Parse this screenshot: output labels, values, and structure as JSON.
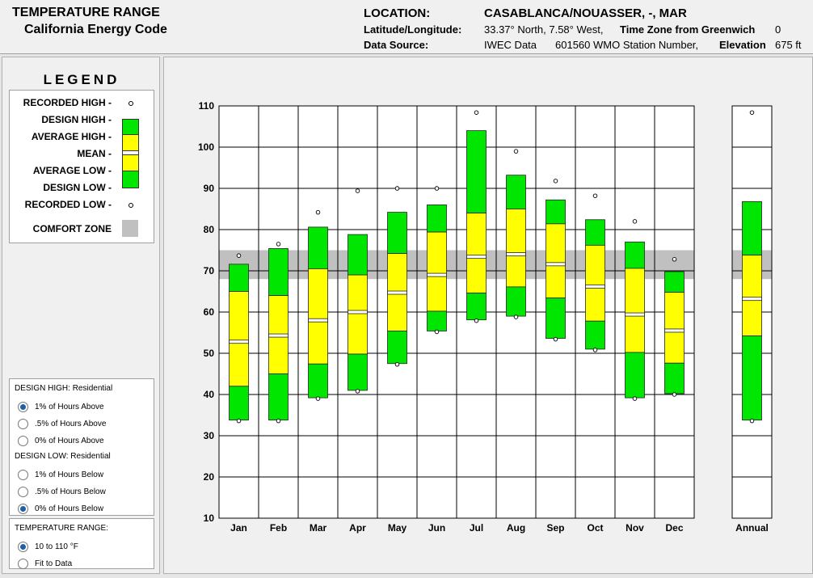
{
  "header": {
    "title": "TEMPERATURE RANGE",
    "subtitle": "California Energy Code",
    "location_label": "LOCATION:",
    "location_value": "CASABLANCA/NOUASSER, -, MAR",
    "latlon_label": "Latitude/Longitude:",
    "latlon_value": "33.37° North, 7.58° West,",
    "tz_label": "Time Zone from Greenwich",
    "tz_value": "0",
    "source_label": "Data Source:",
    "source_value": "IWEC Data",
    "station_value": "601560 WMO Station Number,",
    "elevation_label": "Elevation",
    "elevation_value": "675 ft"
  },
  "legend": {
    "title": "LEGEND",
    "recorded_high": "RECORDED HIGH -",
    "design_high": "DESIGN HIGH -",
    "average_high": "AVERAGE HIGH -",
    "mean": "MEAN -",
    "average_low": "AVERAGE LOW -",
    "design_low": "DESIGN LOW -",
    "recorded_low": "RECORDED LOW -",
    "comfort_zone": "COMFORT ZONE"
  },
  "design_panel": {
    "high_head": "DESIGN HIGH:",
    "high_type": "Residential",
    "high_options": [
      "1% of Hours Above",
      ".5% of Hours Above",
      "0% of Hours Above"
    ],
    "high_selected": 0,
    "low_head": "DESIGN LOW:",
    "low_type": "Residential",
    "low_options": [
      "1% of Hours Below",
      ".5% of Hours Below",
      "0% of Hours Below"
    ],
    "low_selected": 2
  },
  "range_panel": {
    "head": "TEMPERATURE RANGE:",
    "options": [
      "10 to 110 °F",
      "Fit to Data"
    ],
    "selected": 0
  },
  "colors": {
    "design": "#00e600",
    "average": "#ffff00",
    "comfort": "#c0c0c0",
    "mean_line": "#ffffff"
  },
  "chart_data": {
    "type": "bar",
    "ylim": [
      10,
      110
    ],
    "yticks": [
      10,
      20,
      30,
      40,
      50,
      60,
      70,
      80,
      90,
      100,
      110
    ],
    "comfort_zone": [
      68,
      75
    ],
    "categories": [
      "Jan",
      "Feb",
      "Mar",
      "Apr",
      "May",
      "Jun",
      "Jul",
      "Aug",
      "Sep",
      "Oct",
      "Nov",
      "Dec"
    ],
    "annual_label": "Annual",
    "months": [
      {
        "recorded_high": 73.3,
        "design_high": 71.6,
        "average_high": 65.0,
        "mean": 52.8,
        "average_low": 42.0,
        "design_low": 33.8,
        "recorded_low": 33.8
      },
      {
        "recorded_high": 76.1,
        "design_high": 75.4,
        "average_high": 64.0,
        "mean": 54.3,
        "average_low": 45.0,
        "design_low": 33.8,
        "recorded_low": 33.8
      },
      {
        "recorded_high": 83.8,
        "design_high": 80.6,
        "average_high": 70.5,
        "mean": 58.0,
        "average_low": 47.4,
        "design_low": 39.2,
        "recorded_low": 39.2
      },
      {
        "recorded_high": 89.0,
        "design_high": 78.8,
        "average_high": 69.0,
        "mean": 60.0,
        "average_low": 49.8,
        "design_low": 41.0,
        "recorded_low": 41.0
      },
      {
        "recorded_high": 89.6,
        "design_high": 84.2,
        "average_high": 74.2,
        "mean": 64.7,
        "average_low": 55.4,
        "design_low": 47.5,
        "recorded_low": 47.5
      },
      {
        "recorded_high": 89.6,
        "design_high": 86.0,
        "average_high": 79.4,
        "mean": 69.0,
        "average_low": 60.2,
        "design_low": 55.4,
        "recorded_low": 55.4
      },
      {
        "recorded_high": 108.0,
        "design_high": 104.0,
        "average_high": 84.0,
        "mean": 73.4,
        "average_low": 64.6,
        "design_low": 58.1,
        "recorded_low": 58.1
      },
      {
        "recorded_high": 98.6,
        "design_high": 93.2,
        "average_high": 85.0,
        "mean": 74.0,
        "average_low": 66.1,
        "design_low": 59.0,
        "recorded_low": 59.0
      },
      {
        "recorded_high": 91.4,
        "design_high": 87.2,
        "average_high": 81.4,
        "mean": 71.6,
        "average_low": 63.4,
        "design_low": 53.6,
        "recorded_low": 53.6
      },
      {
        "recorded_high": 87.8,
        "design_high": 82.4,
        "average_high": 76.2,
        "mean": 66.2,
        "average_low": 57.8,
        "design_low": 51.0,
        "recorded_low": 51.0
      },
      {
        "recorded_high": 81.6,
        "design_high": 77.0,
        "average_high": 70.6,
        "mean": 59.4,
        "average_low": 50.2,
        "design_low": 39.2,
        "recorded_low": 39.2
      },
      {
        "recorded_high": 72.4,
        "design_high": 69.8,
        "average_high": 64.8,
        "mean": 55.5,
        "average_low": 47.6,
        "design_low": 40.2,
        "recorded_low": 40.2
      }
    ],
    "annual": {
      "recorded_high": 108.0,
      "design_high": 86.8,
      "average_high": 73.8,
      "mean": 63.2,
      "average_low": 54.2,
      "design_low": 33.8,
      "recorded_low": 33.8
    }
  }
}
